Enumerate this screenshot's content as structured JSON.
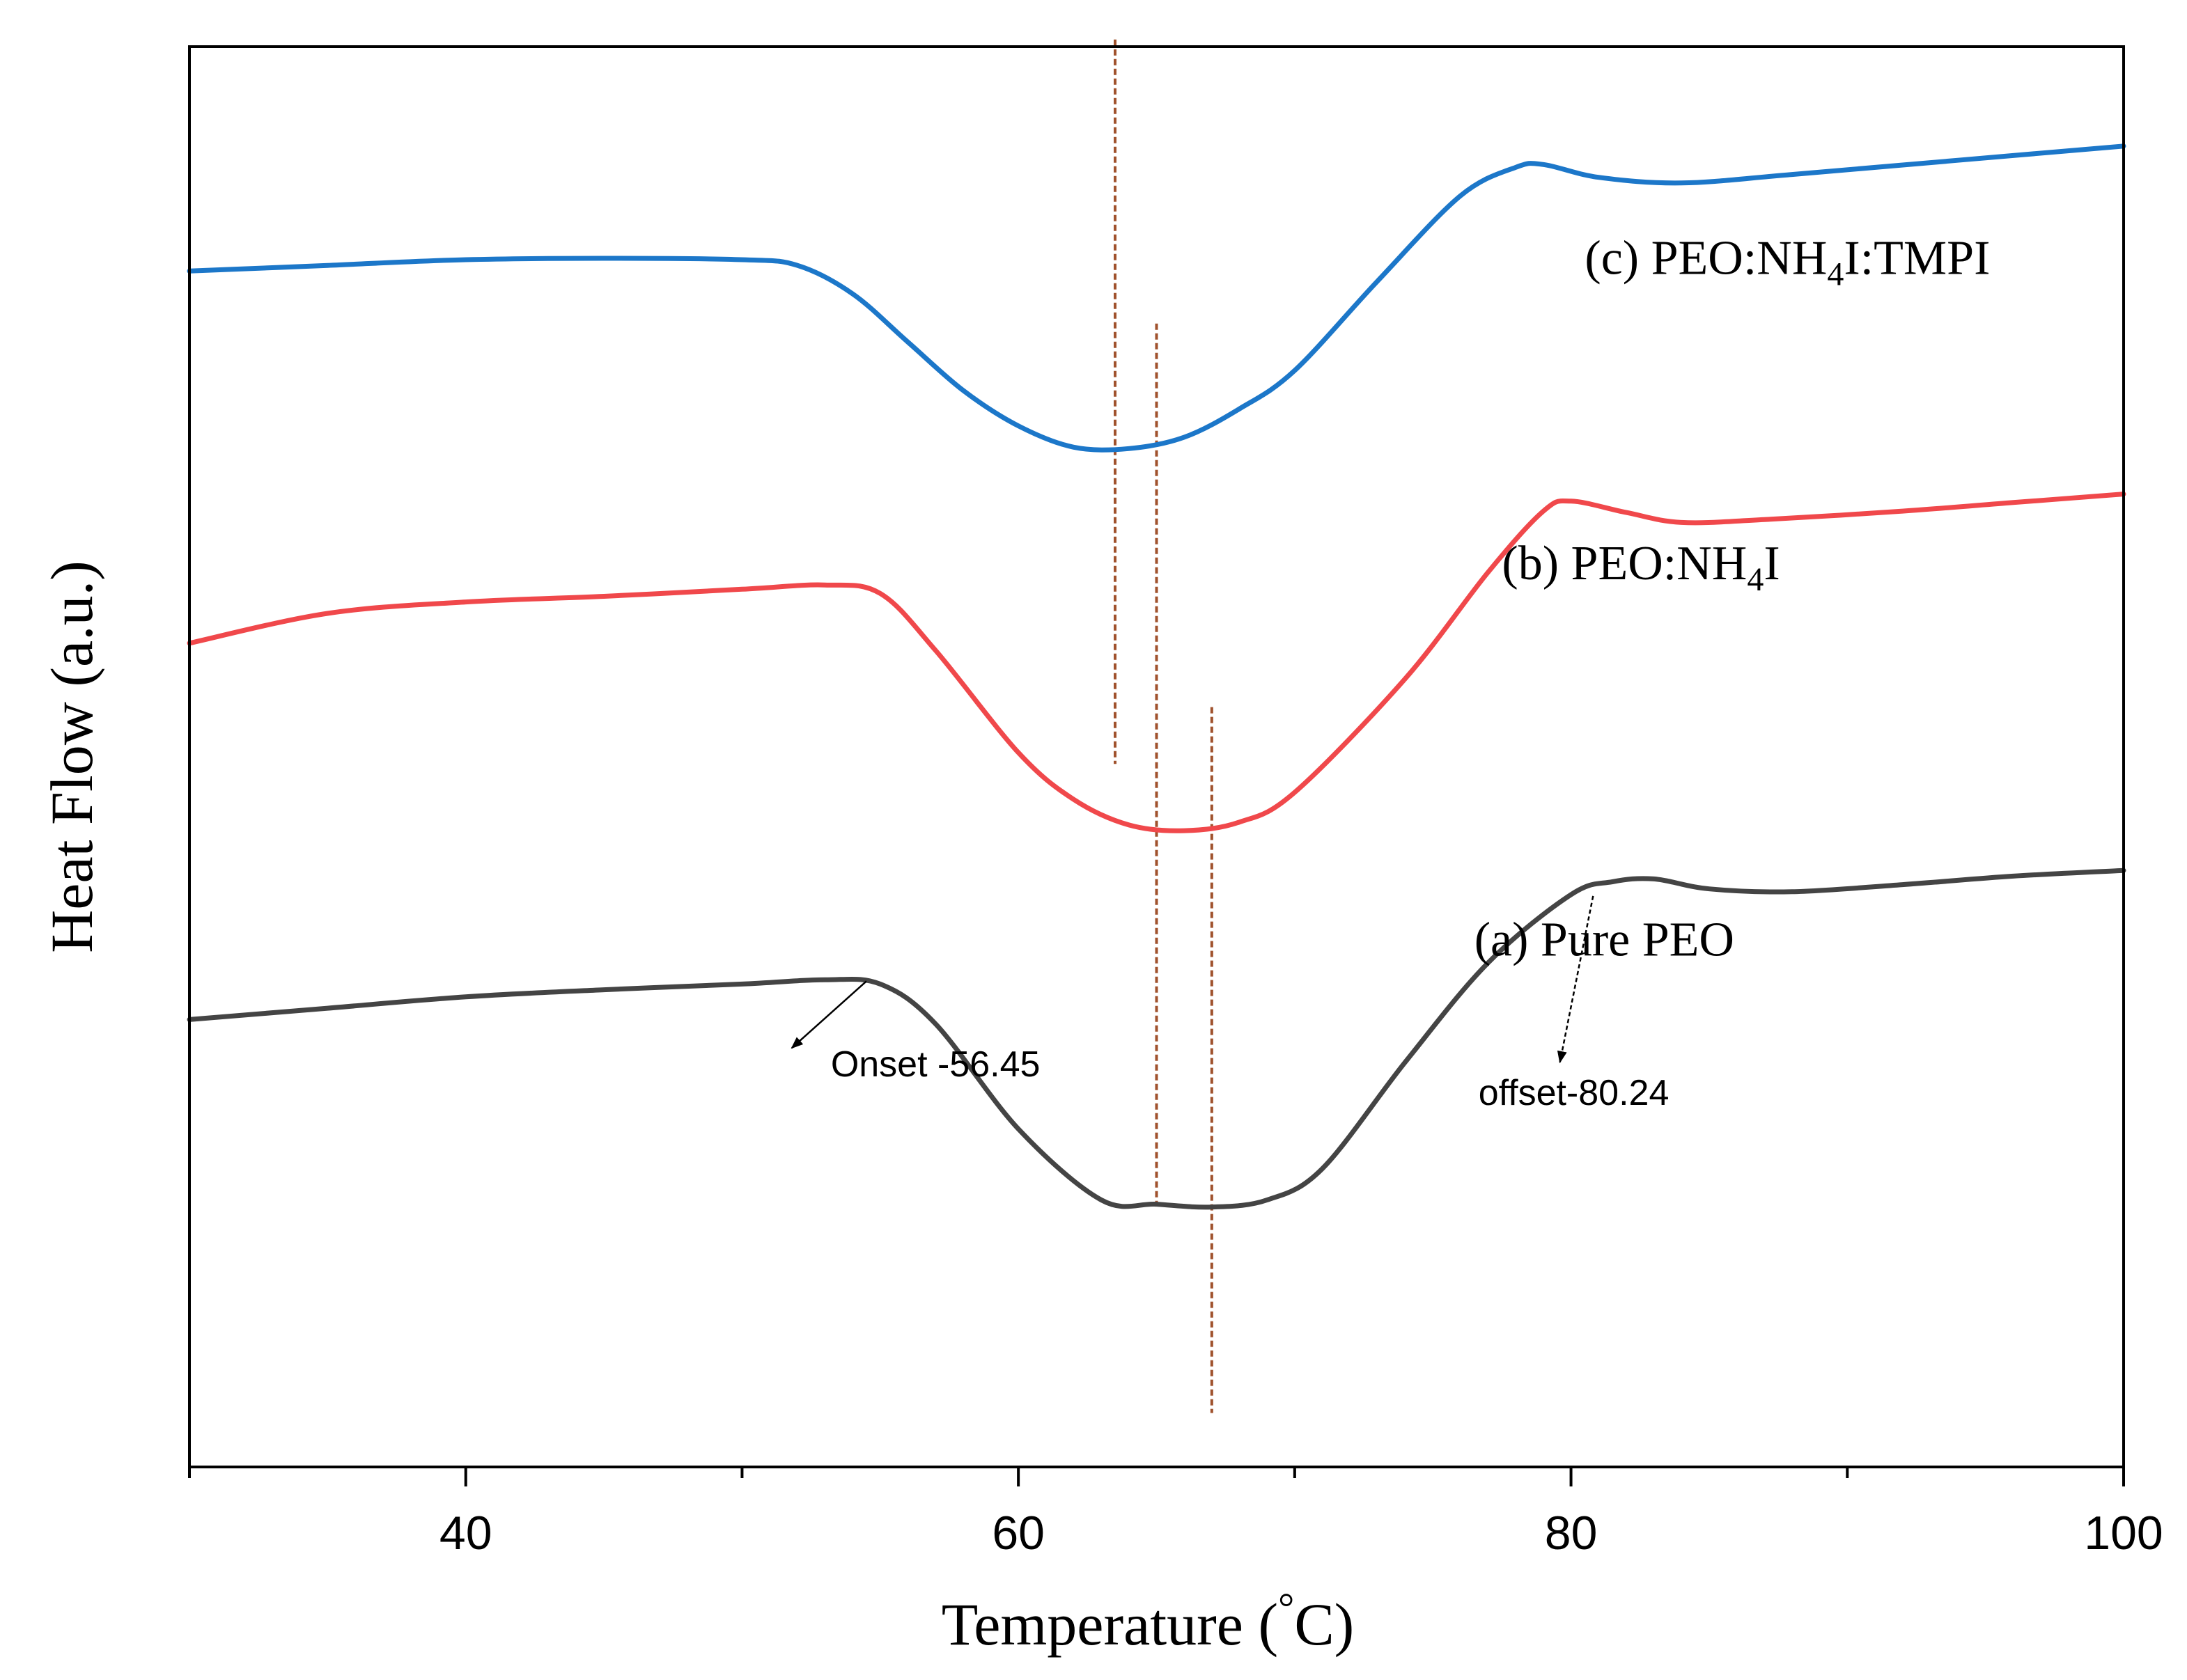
{
  "chart_data": {
    "type": "line",
    "title": "",
    "xlabel": "Temperature (°C)",
    "xlabel_main": "Temperature (",
    "xlabel_degree": "°",
    "xlabel_unit": "C)",
    "ylabel": "Heat Flow (a.u.)",
    "xlim": [
      30,
      100
    ],
    "ylim": [
      0,
      100
    ],
    "x_major_ticks": [
      40,
      60,
      80,
      100
    ],
    "x_minor_ticks": [
      30,
      50,
      70,
      90
    ],
    "x_tick_labels": [
      "40",
      "60",
      "80",
      "100"
    ],
    "y_ticks_shown": false,
    "grid": false,
    "series": [
      {
        "name": "(a) Pure PEO",
        "label_parts": {
          "prefix": "(a) Pure PEO",
          "sub": "",
          "suffix": ""
        },
        "color": "#444444",
        "x": [
          30,
          35,
          40,
          45,
          50,
          53,
          55,
          57,
          60,
          63,
          65,
          67,
          69,
          71,
          74,
          77,
          80,
          81.5,
          83,
          85,
          88,
          92,
          96,
          100
        ],
        "y": [
          31.5,
          32.3,
          33.1,
          33.6,
          34.0,
          34.3,
          34.0,
          31.2,
          23.8,
          18.8,
          18.5,
          18.3,
          18.8,
          21.0,
          28.5,
          35.5,
          40.3,
          41.2,
          41.4,
          40.7,
          40.5,
          41.0,
          41.6,
          42.0
        ],
        "label_anchor": [
          76.5,
          36.0
        ]
      },
      {
        "name": "(b) PEO:NH4I",
        "label_parts": {
          "prefix": "(b) PEO:NH",
          "sub": "4",
          "suffix": "I"
        },
        "color": "#f0484b",
        "x": [
          30,
          35,
          40,
          45,
          50,
          53,
          55,
          57,
          60,
          62,
          64,
          66,
          68,
          70,
          74,
          77,
          79,
          80,
          82,
          84,
          87,
          92,
          96,
          100
        ],
        "y": [
          58.0,
          60.1,
          60.9,
          61.3,
          61.8,
          62.1,
          61.5,
          57.5,
          50.3,
          47.0,
          45.2,
          44.8,
          45.4,
          47.5,
          55.5,
          63.0,
          67.3,
          68.0,
          67.2,
          66.5,
          66.7,
          67.3,
          67.9,
          68.5
        ],
        "label_anchor": [
          77.5,
          62.5
        ]
      },
      {
        "name": "(c) PEO:NH4I:TMPI",
        "label_parts": {
          "prefix": "(c) PEO:NH",
          "sub": "4",
          "suffix": "I:TMPI"
        },
        "color": "#1c77c9",
        "x": [
          30,
          35,
          40,
          45,
          50,
          52,
          54,
          56,
          58,
          60,
          62,
          64,
          66,
          68,
          70,
          73,
          76,
          78,
          79,
          81,
          84,
          88,
          94,
          100
        ],
        "y": [
          84.2,
          84.6,
          85.0,
          85.1,
          85.0,
          84.6,
          82.6,
          79.2,
          75.8,
          73.3,
          71.8,
          71.7,
          72.5,
          74.5,
          77.2,
          83.5,
          89.5,
          91.5,
          91.7,
          90.8,
          90.4,
          91.0,
          92.0,
          93.0
        ],
        "label_anchor": [
          80.5,
          84.0
        ]
      }
    ],
    "reference_lines": [
      {
        "x": 63.5,
        "y_from": 49.5,
        "y_to": 100.5,
        "color": "#a0522d"
      },
      {
        "x": 65.0,
        "y_from": 18.6,
        "y_to": 80.5,
        "color": "#a0522d"
      },
      {
        "x": 67.0,
        "y_from": 3.8,
        "y_to": 53.5,
        "color": "#a0522d"
      }
    ],
    "annotations": [
      {
        "text": "Onset -56.45",
        "text_at": [
          57.0,
          27.5
        ],
        "arrow_from": [
          54.5,
          34.2
        ],
        "arrow_to": [
          51.8,
          29.5
        ]
      },
      {
        "text": "offset-80.24",
        "text_at": [
          80.1,
          25.5
        ],
        "arrow_from": [
          80.8,
          40.2
        ],
        "arrow_to": [
          79.6,
          28.5
        ]
      }
    ]
  }
}
